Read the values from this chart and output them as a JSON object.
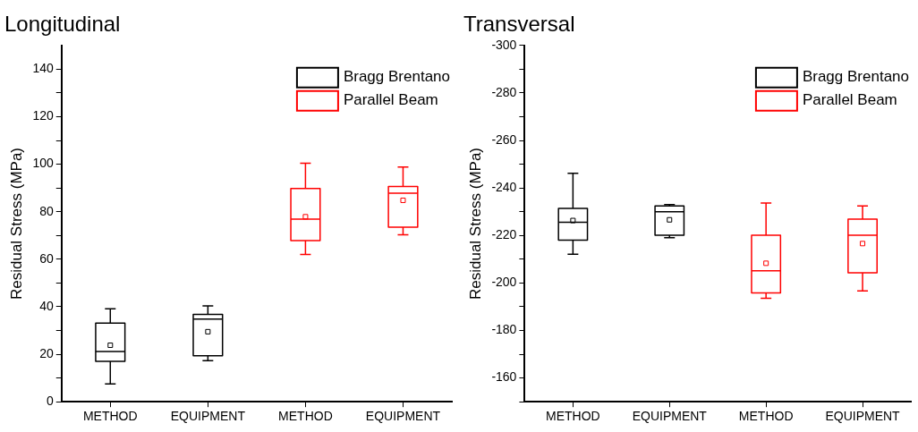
{
  "chart_data": [
    {
      "type": "box",
      "title": "Longitudinal",
      "ylabel": "Residual Stress (MPa)",
      "categories": [
        "METHOD",
        "EQUIPMENT",
        "METHOD",
        "EQUIPMENT"
      ],
      "legend": "top right",
      "grid": false,
      "ylim": [
        0,
        150
      ],
      "yticks": [
        0,
        {
          "value": 10,
          "label": null
        },
        20,
        {
          "value": 30,
          "label": null
        },
        40,
        {
          "value": 50,
          "label": null
        },
        60,
        {
          "value": 70,
          "label": null
        },
        80,
        {
          "value": 90,
          "label": null
        },
        100,
        {
          "value": 110,
          "label": null
        },
        120,
        {
          "value": 130,
          "label": null
        },
        140
      ],
      "series": [
        {
          "name": "Bragg Brentano",
          "color": "#000000",
          "boxes": [
            {
              "low": 7.5,
              "q1": 17,
              "median": 21.2,
              "q3": 33.1,
              "high": 39.1,
              "mean": 23.8
            },
            {
              "low": 17.3,
              "q1": 19.4,
              "median": 34.8,
              "q3": 36.8,
              "high": 40.4,
              "mean": 29.5
            },
            null,
            null
          ]
        },
        {
          "name": "Parallel Beam",
          "color": "#ff0000",
          "boxes": [
            null,
            null,
            {
              "low": 62,
              "q1": 67.8,
              "median": 76.9,
              "q3": 89.8,
              "high": 100.4,
              "mean": 77.9
            },
            {
              "low": 70.3,
              "q1": 73.5,
              "median": 87.8,
              "q3": 90.6,
              "high": 98.8,
              "mean": 84.8
            }
          ]
        }
      ]
    },
    {
      "type": "box",
      "title": "Transversal",
      "ylabel": "Residual Stress (MPa)",
      "categories": [
        "METHOD",
        "EQUIPMENT",
        "METHOD",
        "EQUIPMENT"
      ],
      "legend": "top right",
      "grid": false,
      "ylim": [
        -150,
        -300
      ],
      "yticks": [
        {
          "value": -150,
          "label": null
        },
        -160,
        {
          "value": -170,
          "label": null
        },
        -180,
        {
          "value": -190,
          "label": null
        },
        -200,
        {
          "value": -210,
          "label": null
        },
        -220,
        {
          "value": -230,
          "label": null
        },
        -240,
        {
          "value": -250,
          "label": null
        },
        -260,
        {
          "value": -270,
          "label": null
        },
        -280,
        {
          "value": -290,
          "label": null
        },
        -300
      ],
      "series": [
        {
          "name": "Bragg Brentano",
          "color": "#000000",
          "boxes": [
            {
              "low": -212.1,
              "q1": -218,
              "median": -225.6,
              "q3": -231.4,
              "high": -246.2,
              "mean": -226.3
            },
            {
              "low": -219.1,
              "q1": -220.1,
              "median": -230,
              "q3": -232.4,
              "high": -233,
              "mean": -226.6
            },
            null,
            null
          ]
        },
        {
          "name": "Parallel Beam",
          "color": "#ff0000",
          "boxes": [
            null,
            null,
            {
              "low": -193.6,
              "q1": -195.8,
              "median": -205.1,
              "q3": -220.1,
              "high": -233.7,
              "mean": -208.3
            },
            {
              "low": -196.7,
              "q1": -204.3,
              "median": -220.1,
              "q3": -226.9,
              "high": -232.4,
              "mean": -216.6
            }
          ]
        }
      ]
    }
  ]
}
